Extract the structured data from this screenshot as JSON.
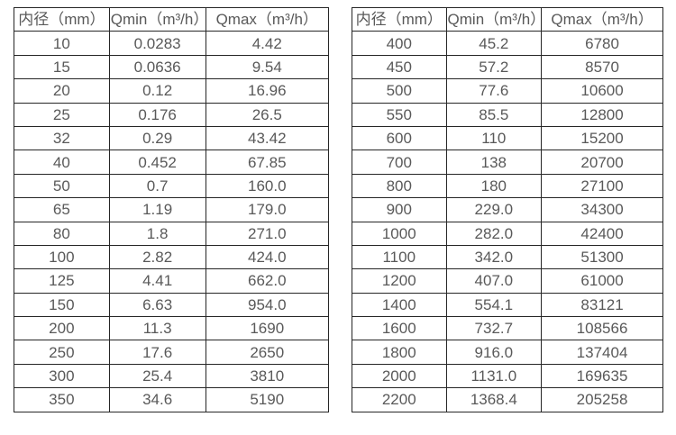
{
  "colors": {
    "background": "#ffffff",
    "border": "#262626",
    "text": "#595959"
  },
  "tables": [
    {
      "name": "diameter-flow-table-small",
      "headers": [
        "内径（mm）",
        "Qmin（m³/h）",
        "Qmax（m³/h）"
      ],
      "rows": [
        [
          "10",
          "0.0283",
          "4.42"
        ],
        [
          "15",
          "0.0636",
          "9.54"
        ],
        [
          "20",
          "0.12",
          "16.96"
        ],
        [
          "25",
          "0.176",
          "26.5"
        ],
        [
          "32",
          "0.29",
          "43.42"
        ],
        [
          "40",
          "0.452",
          "67.85"
        ],
        [
          "50",
          "0.7",
          "160.0"
        ],
        [
          "65",
          "1.19",
          "179.0"
        ],
        [
          "80",
          "1.8",
          "271.0"
        ],
        [
          "100",
          "2.82",
          "424.0"
        ],
        [
          "125",
          "4.41",
          "662.0"
        ],
        [
          "150",
          "6.63",
          "954.0"
        ],
        [
          "200",
          "11.3",
          "1690"
        ],
        [
          "250",
          "17.6",
          "2650"
        ],
        [
          "300",
          "25.4",
          "3810"
        ],
        [
          "350",
          "34.6",
          "5190"
        ]
      ]
    },
    {
      "name": "diameter-flow-table-large",
      "headers": [
        "内径（mm）",
        "Qmin（m³/h）",
        "Qmax（m³/h）"
      ],
      "rows": [
        [
          "400",
          "45.2",
          "6780"
        ],
        [
          "450",
          "57.2",
          "8570"
        ],
        [
          "500",
          "77.6",
          "10600"
        ],
        [
          "550",
          "85.5",
          "12800"
        ],
        [
          "600",
          "110",
          "15200"
        ],
        [
          "700",
          "138",
          "20700"
        ],
        [
          "800",
          "180",
          "27100"
        ],
        [
          "900",
          "229.0",
          "34300"
        ],
        [
          "1000",
          "282.0",
          "42400"
        ],
        [
          "1100",
          "342.0",
          "51300"
        ],
        [
          "1200",
          "407.0",
          "61000"
        ],
        [
          "1400",
          "554.1",
          "83121"
        ],
        [
          "1600",
          "732.7",
          "108566"
        ],
        [
          "1800",
          "916.0",
          "137404"
        ],
        [
          "2000",
          "1131.0",
          "169635"
        ],
        [
          "2200",
          "1368.4",
          "205258"
        ]
      ]
    }
  ]
}
